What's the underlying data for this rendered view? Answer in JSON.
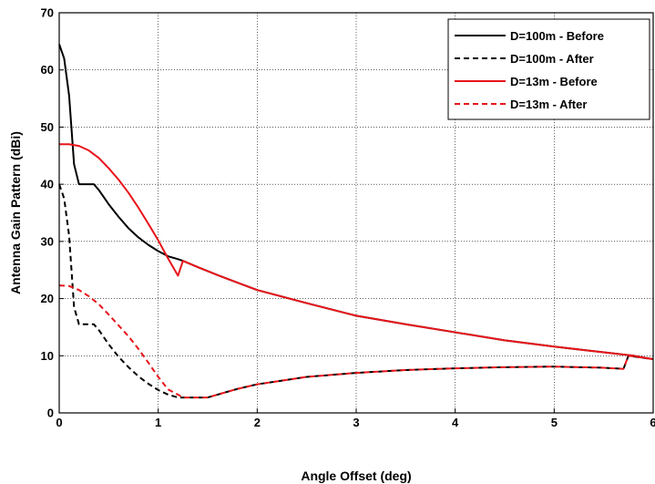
{
  "chart_data": {
    "type": "line",
    "title": "",
    "xlabel": "Angle Offset (deg)",
    "ylabel": "Antenna Gain Pattern (dBi)",
    "xlim": [
      0,
      6
    ],
    "ylim": [
      0,
      70
    ],
    "xticks": [
      "0",
      "1",
      "2",
      "3",
      "4",
      "5",
      "6"
    ],
    "yticks": [
      "0",
      "10",
      "20",
      "30",
      "40",
      "50",
      "60",
      "70"
    ],
    "grid": true,
    "legend_position": "top-right",
    "series": [
      {
        "name": "D=100m - Before",
        "color": "#000000",
        "dash": "solid",
        "x": [
          0,
          0.05,
          0.1,
          0.15,
          0.2,
          0.25,
          0.3,
          0.35,
          0.4,
          0.5,
          0.6,
          0.7,
          0.8,
          0.9,
          1.0,
          1.1,
          1.2,
          1.25,
          1.4,
          1.6,
          1.8,
          2.0,
          2.5,
          3.0,
          3.5,
          4.0,
          4.5,
          5.0,
          5.5,
          5.8,
          6.0
        ],
        "y": [
          64.5,
          62,
          55.5,
          43.5,
          40,
          40,
          40,
          40,
          39,
          36.5,
          34.3,
          32.3,
          30.7,
          29.4,
          28.3,
          27.4,
          26.9,
          26.6,
          25.5,
          24.1,
          22.8,
          21.5,
          19.2,
          17,
          15.5,
          14.1,
          12.7,
          11.6,
          10.6,
          10,
          9.4
        ]
      },
      {
        "name": "D=100m - After",
        "color": "#000000",
        "dash": "dashed",
        "x": [
          0,
          0.05,
          0.1,
          0.15,
          0.2,
          0.25,
          0.3,
          0.35,
          0.4,
          0.5,
          0.6,
          0.7,
          0.8,
          0.9,
          1.0,
          1.1,
          1.2,
          1.3,
          1.4,
          1.5,
          1.6,
          1.8,
          2.0,
          2.5,
          3.0,
          3.5,
          4.0,
          4.5,
          5.0,
          5.5,
          5.7,
          5.75,
          6.0
        ],
        "y": [
          40,
          37.5,
          31,
          18.5,
          15.5,
          15.5,
          15.5,
          15.5,
          14.5,
          12,
          9.8,
          8,
          6.4,
          5.1,
          4,
          3.2,
          2.7,
          2.7,
          2.7,
          2.7,
          3.2,
          4.2,
          5,
          6.3,
          7,
          7.5,
          7.8,
          8,
          8.1,
          7.9,
          7.7,
          10,
          9.4
        ]
      },
      {
        "name": "D=13m - Before",
        "color": "#e8141a",
        "dash": "solid",
        "x": [
          0,
          0.1,
          0.2,
          0.3,
          0.4,
          0.5,
          0.6,
          0.7,
          0.8,
          0.9,
          1.0,
          1.1,
          1.2,
          1.25,
          1.4,
          1.6,
          1.8,
          2.0,
          2.5,
          3.0,
          3.5,
          4.0,
          4.5,
          5.0,
          5.5,
          5.8,
          6.0
        ],
        "y": [
          47,
          47,
          46.7,
          45.9,
          44.6,
          42.8,
          40.8,
          38.5,
          35.9,
          33.1,
          30.2,
          27,
          24,
          26.6,
          25.5,
          24.1,
          22.8,
          21.5,
          19.2,
          17,
          15.5,
          14.1,
          12.7,
          11.6,
          10.6,
          10,
          9.4
        ]
      },
      {
        "name": "D=13m - After",
        "color": "#e8141a",
        "dash": "dashed",
        "x": [
          0,
          0.1,
          0.2,
          0.3,
          0.4,
          0.5,
          0.6,
          0.7,
          0.8,
          0.9,
          1.0,
          1.1,
          1.2,
          1.25,
          1.3,
          1.4,
          1.5,
          1.6,
          1.8,
          2.0,
          2.5,
          3.0,
          3.5,
          4.0,
          4.5,
          5.0,
          5.5,
          5.7,
          5.75,
          6.0
        ],
        "y": [
          22.3,
          22.2,
          21.5,
          20.4,
          19,
          17.2,
          15.3,
          13.4,
          11.2,
          8.8,
          6.3,
          4.1,
          3.2,
          2.7,
          2.7,
          2.7,
          2.7,
          3.2,
          4.2,
          5,
          6.3,
          7,
          7.5,
          7.8,
          8,
          8.1,
          7.9,
          7.7,
          10,
          9.4
        ]
      }
    ]
  }
}
